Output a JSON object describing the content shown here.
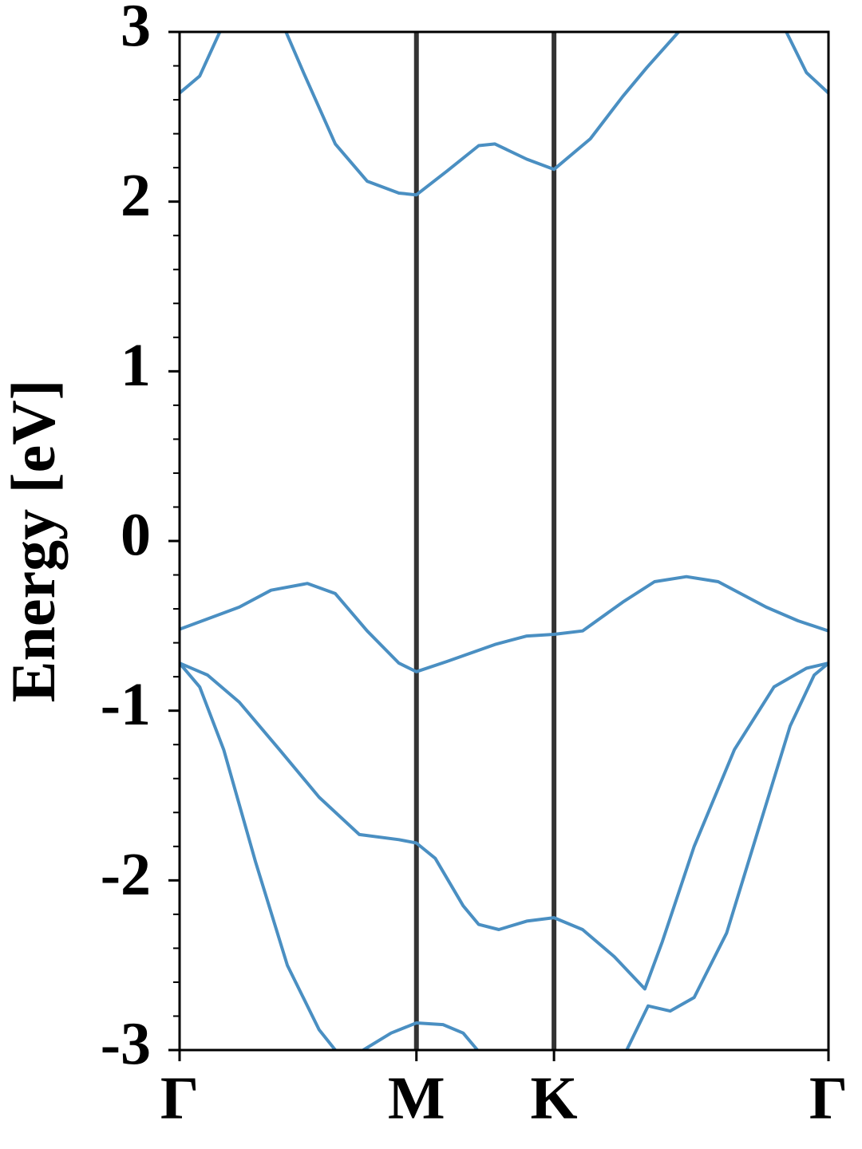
{
  "chart_data": {
    "type": "line",
    "ylabel": "Energy [eV]",
    "xlim": [
      0,
      1
    ],
    "xticks": [
      {
        "value": 0,
        "label": "Γ"
      },
      {
        "value": 0.365,
        "label": "M"
      },
      {
        "value": 0.577,
        "label": "K"
      },
      {
        "value": 1,
        "label": "Γ"
      }
    ],
    "ylim": [
      -3,
      3
    ],
    "yticks": [
      -3,
      -2,
      -1,
      0,
      1,
      2,
      3
    ],
    "yminorticks": [
      -2.8,
      -2.6,
      -2.4,
      -2.2,
      -1.8,
      -1.6,
      -1.4,
      -1.2,
      -0.8,
      -0.6,
      -0.4,
      -0.2,
      0.2,
      0.4,
      0.6,
      0.8,
      1.2,
      1.4,
      1.6,
      1.8,
      2.2,
      2.4,
      2.6,
      2.8
    ],
    "vertical_lines_color": "#333333",
    "series": [
      {
        "color": "#4a8fc2",
        "x": [
          0,
          0.031,
          0.062,
          0.113,
          0.164,
          0.191,
          0.24,
          0.289,
          0.338,
          0.365,
          0.412,
          0.461,
          0.486,
          0.535,
          0.577,
          0.633,
          0.683,
          0.72,
          0.769,
          0.85,
          0.935,
          0.966,
          1
        ],
        "values": [
          2.64,
          2.74,
          3.0,
          null,
          3.0,
          2.76,
          2.34,
          2.12,
          2.05,
          2.04,
          2.18,
          2.33,
          2.34,
          2.25,
          2.19,
          2.37,
          2.62,
          2.79,
          3.0,
          null,
          3.0,
          2.76,
          2.64
        ]
      },
      {
        "color": "#4a8fc2",
        "x": [
          0,
          0.092,
          0.141,
          0.197,
          0.24,
          0.289,
          0.338,
          0.365,
          0.412,
          0.486,
          0.535,
          0.577,
          0.621,
          0.683,
          0.732,
          0.781,
          0.83,
          0.904,
          0.953,
          1
        ],
        "values": [
          -0.52,
          -0.39,
          -0.29,
          -0.25,
          -0.31,
          -0.53,
          -0.72,
          -0.77,
          -0.71,
          -0.61,
          -0.56,
          -0.55,
          -0.53,
          -0.36,
          -0.24,
          -0.21,
          -0.24,
          -0.39,
          -0.47,
          -0.53
        ]
      },
      {
        "color": "#4a8fc2",
        "x": [
          0,
          0.043,
          0.092,
          0.154,
          0.215,
          0.277,
          0.338,
          0.365,
          0.394,
          0.437,
          0.461,
          0.492,
          0.535,
          0.577,
          0.621,
          0.67,
          0.717,
          0.744,
          0.793,
          0.855,
          0.916,
          0.966,
          1
        ],
        "values": [
          -0.72,
          -0.79,
          -0.95,
          -1.23,
          -1.51,
          -1.73,
          -1.76,
          -1.78,
          -1.87,
          -2.15,
          -2.26,
          -2.29,
          -2.24,
          -2.22,
          -2.29,
          -2.45,
          -2.64,
          -2.36,
          -1.8,
          -1.23,
          -0.86,
          -0.75,
          -0.72
        ]
      },
      {
        "color": "#4a8fc2",
        "x": [
          0,
          0.031,
          0.068,
          0.117,
          0.166,
          0.215,
          0.24,
          0.26,
          0.283,
          0.326,
          0.365,
          0.406,
          0.437,
          0.459,
          0.57,
          0.689,
          0.722,
          0.756,
          0.793,
          0.843,
          0.892,
          0.941,
          0.978,
          1
        ],
        "values": [
          -0.72,
          -0.86,
          -1.23,
          -1.89,
          -2.5,
          -2.88,
          -3.0,
          null,
          -3.0,
          -2.9,
          -2.84,
          -2.85,
          -2.9,
          -3.0,
          null,
          -3.0,
          -2.74,
          -2.77,
          -2.69,
          -2.31,
          -1.7,
          -1.09,
          -0.79,
          -0.72
        ]
      }
    ]
  }
}
